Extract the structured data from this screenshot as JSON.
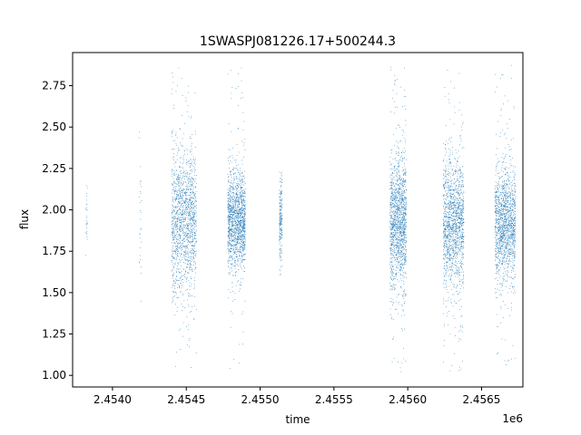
{
  "chart_data": {
    "type": "scatter",
    "title": "1SWASPJ081226.17+500244.3",
    "xlabel": "time",
    "ylabel": "flux",
    "x_offset_label": "1e6",
    "xlim": [
      2453730,
      2456780
    ],
    "ylim": [
      0.93,
      2.95
    ],
    "x_ticks": [
      2454000,
      2454500,
      2455000,
      2455500,
      2456000,
      2456500
    ],
    "x_tick_labels": [
      "2.4540",
      "2.4545",
      "2.4550",
      "2.4555",
      "2.4560",
      "2.4565"
    ],
    "y_ticks": [
      1.0,
      1.25,
      1.5,
      1.75,
      2.0,
      2.25,
      2.5,
      2.75
    ],
    "y_tick_labels": [
      "1.00",
      "1.25",
      "1.50",
      "1.75",
      "2.00",
      "2.25",
      "2.50",
      "2.75"
    ],
    "grid": false,
    "marker_color": "#1f77b4",
    "observing_seasons": [
      {
        "x_range": [
          2453820,
          2453830
        ],
        "center": 1.95,
        "spread": 0.16,
        "min": 1.72,
        "max": 2.25,
        "density": "sparse"
      },
      {
        "x_range": [
          2454180,
          2454200
        ],
        "center": 1.95,
        "spread": 0.3,
        "min": 1.15,
        "max": 2.58,
        "density": "sparse"
      },
      {
        "x_range": [
          2454400,
          2454570
        ],
        "center": 1.93,
        "spread": 0.22,
        "min": 1.02,
        "max": 2.88,
        "density": "dense"
      },
      {
        "x_range": [
          2454780,
          2454900
        ],
        "center": 1.93,
        "spread": 0.15,
        "min": 1.04,
        "max": 2.88,
        "density": "dense"
      },
      {
        "x_range": [
          2455130,
          2455150
        ],
        "center": 1.95,
        "spread": 0.12,
        "min": 1.58,
        "max": 2.35,
        "density": "medium"
      },
      {
        "x_range": [
          2455880,
          2455990
        ],
        "center": 1.93,
        "spread": 0.2,
        "min": 1.02,
        "max": 2.88,
        "density": "dense"
      },
      {
        "x_range": [
          2456240,
          2456380
        ],
        "center": 1.93,
        "spread": 0.2,
        "min": 1.02,
        "max": 2.88,
        "density": "dense"
      },
      {
        "x_range": [
          2456590,
          2456730
        ],
        "center": 1.92,
        "spread": 0.16,
        "min": 1.05,
        "max": 2.88,
        "density": "dense"
      }
    ]
  }
}
